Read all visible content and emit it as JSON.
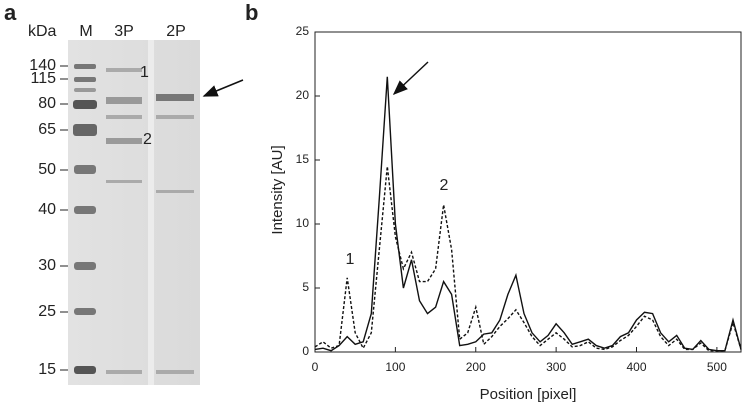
{
  "gel": {
    "panel_label": "a",
    "unit": "kDa",
    "lanes": [
      "M",
      "3P",
      "2P"
    ],
    "markers": [
      140,
      115,
      80,
      65,
      50,
      40,
      30,
      25,
      15
    ],
    "band_labels": [
      "1",
      "2"
    ]
  },
  "chart_data": {
    "type": "line",
    "panel_label": "b",
    "x_label": "Position [pixel]",
    "y_label": "Intensity [AU]",
    "x": [
      0,
      10,
      20,
      30,
      40,
      50,
      60,
      70,
      80,
      90,
      100,
      110,
      120,
      130,
      140,
      150,
      160,
      170,
      180,
      190,
      200,
      210,
      220,
      230,
      240,
      250,
      260,
      270,
      280,
      290,
      300,
      310,
      320,
      330,
      340,
      350,
      360,
      370,
      380,
      390,
      400,
      410,
      420,
      430,
      440,
      450,
      460,
      470,
      480,
      490,
      500,
      510,
      520,
      530
    ],
    "series": [
      {
        "color": "#111111",
        "dash": "solid",
        "values": [
          0.2,
          0.3,
          0.1,
          0.5,
          1.2,
          0.6,
          0.8,
          3,
          12,
          21.5,
          10,
          5,
          7.2,
          4,
          3,
          3.5,
          5.5,
          4.5,
          0.5,
          0.6,
          0.8,
          1.4,
          1.5,
          2.5,
          4.5,
          6,
          3,
          1.5,
          0.8,
          1.3,
          2.2,
          1.5,
          0.6,
          0.8,
          1,
          0.5,
          0.3,
          0.5,
          1.2,
          1.5,
          2.5,
          3.1,
          3,
          1.5,
          0.8,
          1.3,
          0.3,
          0.2,
          0.9,
          0.2,
          0.1,
          0.1,
          2.5,
          0.2
        ]
      },
      {
        "color": "#111111",
        "dash": "dashed",
        "values": [
          0.4,
          0.8,
          0.3,
          0.5,
          5.8,
          1.5,
          0.3,
          1.5,
          8,
          14.5,
          9,
          6.5,
          7.8,
          5.5,
          5.5,
          6.5,
          11.5,
          8,
          1,
          1.5,
          3.5,
          0.6,
          1.2,
          2,
          2.6,
          3.3,
          2.3,
          1.2,
          0.5,
          1,
          1.5,
          1,
          0.4,
          0.5,
          0.8,
          0.3,
          0.2,
          0.4,
          0.9,
          1.3,
          2,
          2.8,
          2.5,
          1.2,
          0.5,
          1,
          0.2,
          0.2,
          0.7,
          0.1,
          0.1,
          0.1,
          2.3,
          0.2
        ]
      }
    ],
    "annotations": [
      "1",
      "2"
    ],
    "xlim": [
      0,
      530
    ],
    "ylim": [
      0,
      25
    ],
    "xticks": [
      0,
      100,
      200,
      300,
      400,
      500
    ],
    "yticks": [
      0,
      5,
      10,
      15,
      20,
      25
    ]
  }
}
